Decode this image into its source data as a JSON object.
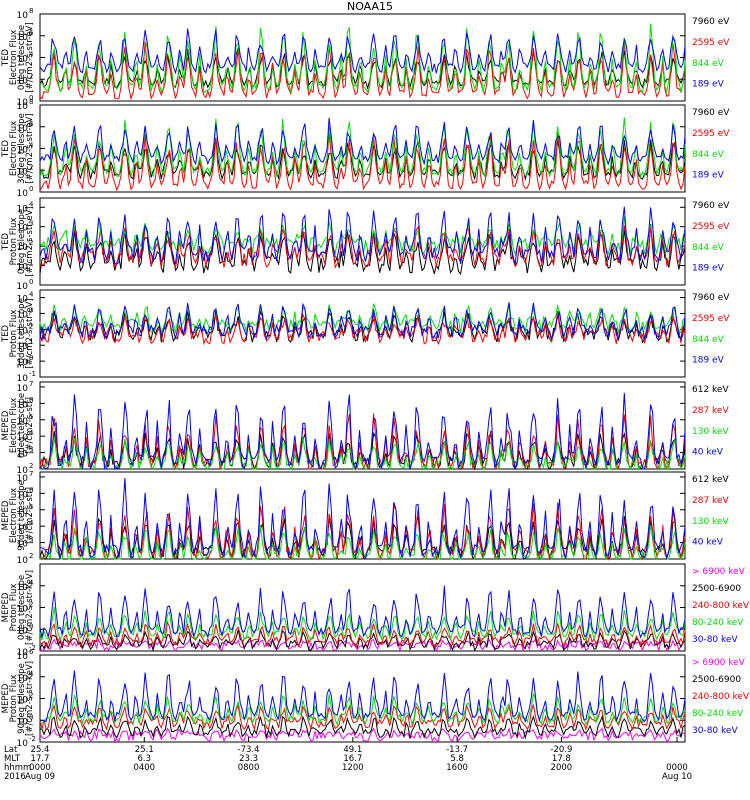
{
  "chart_data": {
    "type": "line",
    "title": "NOAA15",
    "y_scale": "log",
    "x_axis": {
      "row_labels": [
        "Lat",
        "MLT",
        "hhmm",
        "2016"
      ],
      "ticks": [
        {
          "lat": "25.4",
          "mlt": "17.7",
          "hhmm": "0000",
          "date": "Aug 09"
        },
        {
          "lat": "25.1",
          "mlt": "6.3",
          "hhmm": "0400",
          "date": ""
        },
        {
          "lat": "-73.4",
          "mlt": "23.3",
          "hhmm": "0800",
          "date": ""
        },
        {
          "lat": "49.1",
          "mlt": "16.7",
          "hhmm": "1200",
          "date": ""
        },
        {
          "lat": "-13.7",
          "mlt": "5.8",
          "hhmm": "1600",
          "date": ""
        },
        {
          "lat": "-20.9",
          "mlt": "17.8",
          "hhmm": "2000",
          "date": ""
        },
        {
          "lat": "",
          "mlt": "",
          "hhmm": "0000",
          "date": "Aug 10"
        }
      ]
    },
    "colors": {
      "black": "#000000",
      "red": "#ff0000",
      "green": "#00dd00",
      "blue": "#0000ff",
      "magenta": "#ff00ff"
    },
    "panels": [
      {
        "ylabel": [
          "TED",
          "Electron Flux",
          "0deg telescope",
          "[#/cm2-s-str-eV]"
        ],
        "yticks": [
          {
            "base": "10",
            "exp": "0"
          },
          {
            "base": "10",
            "exp": "2"
          },
          {
            "base": "10",
            "exp": "4"
          },
          {
            "base": "10",
            "exp": "6"
          },
          {
            "base": "10",
            "exp": "8"
          }
        ],
        "ylim": [
          1,
          100000000
        ],
        "series": [
          {
            "name": "7960 eV",
            "color": "#000000",
            "baseline": 1.6,
            "peak": 5.0
          },
          {
            "name": "2595 eV",
            "color": "#ff0000",
            "baseline": 0.6,
            "peak": 5.8
          },
          {
            "name": "844 eV",
            "color": "#00dd00",
            "baseline": 1.2,
            "peak": 7.2
          },
          {
            "name": "189 eV",
            "color": "#0000ff",
            "baseline": 3.0,
            "peak": 6.8
          }
        ]
      },
      {
        "ylabel": [
          "TED",
          "Electron Flux",
          "30deg telescope",
          "[#/cm2-s-str-eV]"
        ],
        "yticks": [
          {
            "base": "10",
            "exp": "0"
          },
          {
            "base": "10",
            "exp": "2"
          },
          {
            "base": "10",
            "exp": "4"
          },
          {
            "base": "10",
            "exp": "6"
          },
          {
            "base": "10",
            "exp": "8"
          }
        ],
        "ylim": [
          1,
          100000000
        ],
        "series": [
          {
            "name": "7960 eV",
            "color": "#000000",
            "baseline": 1.6,
            "peak": 5.0
          },
          {
            "name": "2595 eV",
            "color": "#ff0000",
            "baseline": 0.6,
            "peak": 5.6
          },
          {
            "name": "844 eV",
            "color": "#00dd00",
            "baseline": 1.8,
            "peak": 7.0
          },
          {
            "name": "189 eV",
            "color": "#0000ff",
            "baseline": 3.0,
            "peak": 6.8
          }
        ]
      },
      {
        "ylabel": [
          "TED",
          "Proton Flux",
          "0deg telescope",
          "[#/cm2-s-str-eV]"
        ],
        "yticks": [
          {
            "base": "10",
            "exp": "0"
          },
          {
            "base": "10",
            "exp": "1"
          },
          {
            "base": "10",
            "exp": "2"
          },
          {
            "base": "10",
            "exp": "3"
          },
          {
            "base": "10",
            "exp": "4"
          }
        ],
        "ylim": [
          1,
          30000
        ],
        "series": [
          {
            "name": "7960 eV",
            "color": "#000000",
            "baseline": 1.0,
            "peak": 3.0
          },
          {
            "name": "2595 eV",
            "color": "#ff0000",
            "baseline": 1.3,
            "peak": 3.2
          },
          {
            "name": "844 eV",
            "color": "#00dd00",
            "baseline": 2.0,
            "peak": 3.4
          },
          {
            "name": "189 eV",
            "color": "#0000ff",
            "baseline": 1.5,
            "peak": 4.2
          }
        ]
      },
      {
        "ylabel": [
          "TED",
          "Proton Flux",
          "30deg telescope",
          "[#/cm2-s-str-eV]"
        ],
        "yticks": [
          {
            "base": "10",
            "exp": "-1"
          },
          {
            "base": "10",
            "exp": "0"
          },
          {
            "base": "10",
            "exp": "1"
          },
          {
            "base": "10",
            "exp": "2"
          },
          {
            "base": "10",
            "exp": "3"
          },
          {
            "base": "10",
            "exp": "4"
          }
        ],
        "ylim": [
          0.1,
          30000
        ],
        "series": [
          {
            "name": "7960 eV",
            "color": "#000000",
            "baseline": 1.6,
            "peak": 3.2
          },
          {
            "name": "2595 eV",
            "color": "#ff0000",
            "baseline": 1.5,
            "peak": 3.0
          },
          {
            "name": "844 eV",
            "color": "#00dd00",
            "baseline": 2.2,
            "peak": 3.6
          },
          {
            "name": "189 eV",
            "color": "#0000ff",
            "baseline": 1.8,
            "peak": 3.8
          }
        ]
      },
      {
        "ylabel": [
          "MEPED",
          "Electron Flux",
          "0deg telescope",
          "[#/cm2-s-str]"
        ],
        "yticks": [
          {
            "base": "10",
            "exp": "2"
          },
          {
            "base": "10",
            "exp": "3"
          },
          {
            "base": "10",
            "exp": "4"
          },
          {
            "base": "10",
            "exp": "5"
          },
          {
            "base": "10",
            "exp": "6"
          },
          {
            "base": "10",
            "exp": "7"
          }
        ],
        "ylim": [
          100,
          20000000
        ],
        "series": [
          {
            "name": "612 keV",
            "color": "#000000",
            "baseline": 2.3,
            "peak": 4.5
          },
          {
            "name": "287 keV",
            "color": "#ff0000",
            "baseline": 2.2,
            "peak": 5.5
          },
          {
            "name": "130 keV",
            "color": "#00dd00",
            "baseline": 2.1,
            "peak": 4.0
          },
          {
            "name": "40 keV",
            "color": "#0000ff",
            "baseline": 2.3,
            "peak": 6.8
          }
        ]
      },
      {
        "ylabel": [
          "MEPED",
          "Electron Flux",
          "90deg telescope",
          "[#/cm2-s-str]"
        ],
        "yticks": [
          {
            "base": "10",
            "exp": "2"
          },
          {
            "base": "10",
            "exp": "3"
          },
          {
            "base": "10",
            "exp": "4"
          },
          {
            "base": "10",
            "exp": "5"
          },
          {
            "base": "10",
            "exp": "6"
          },
          {
            "base": "10",
            "exp": "7"
          }
        ],
        "ylim": [
          100,
          20000000
        ],
        "series": [
          {
            "name": "612 keV",
            "color": "#000000",
            "baseline": 2.3,
            "peak": 4.8
          },
          {
            "name": "287 keV",
            "color": "#ff0000",
            "baseline": 2.2,
            "peak": 5.6
          },
          {
            "name": "130 keV",
            "color": "#00dd00",
            "baseline": 2.0,
            "peak": 4.2
          },
          {
            "name": "40 keV",
            "color": "#0000ff",
            "baseline": 2.4,
            "peak": 6.8
          }
        ]
      },
      {
        "ylabel": [
          "MEPED",
          "Proton Flux",
          "0deg telescope",
          "[#/cm2-s-str-keV]"
        ],
        "yticks": [
          {
            "base": "10",
            "exp": "-2"
          },
          {
            "base": "10",
            "exp": "0"
          },
          {
            "base": "10",
            "exp": "2"
          },
          {
            "base": "10",
            "exp": "4"
          }
        ],
        "ylim": [
          0.01,
          1000000
        ],
        "series": [
          {
            "name": "> 6900 keV",
            "color": "#ff00ff",
            "baseline": -1.6,
            "peak": -1.0
          },
          {
            "name": "2500-6900",
            "color": "#000000",
            "baseline": -1.5,
            "peak": 0.0
          },
          {
            "name": "240-800 keV",
            "color": "#ff0000",
            "baseline": -1.2,
            "peak": 0.8
          },
          {
            "name": "80-240 keV",
            "color": "#00dd00",
            "baseline": -0.6,
            "peak": 2.0
          },
          {
            "name": "30-80 keV",
            "color": "#0000ff",
            "baseline": -0.3,
            "peak": 4.0
          }
        ]
      },
      {
        "ylabel": [
          "MEPED",
          "Proton Flux",
          "90deg telescope",
          "[#/cm2-s-str-keV]"
        ],
        "yticks": [
          {
            "base": "10",
            "exp": "-2"
          },
          {
            "base": "10",
            "exp": "0"
          },
          {
            "base": "10",
            "exp": "2"
          },
          {
            "base": "10",
            "exp": "4"
          },
          {
            "base": "10",
            "exp": "6"
          }
        ],
        "ylim": [
          0.01,
          1000000
        ],
        "series": [
          {
            "name": "> 6900 keV",
            "color": "#ff00ff",
            "baseline": -1.5,
            "peak": -0.8
          },
          {
            "name": "2500-6900",
            "color": "#000000",
            "baseline": -1.2,
            "peak": 0.5
          },
          {
            "name": "240-800 keV",
            "color": "#ff0000",
            "baseline": -0.4,
            "peak": 1.6
          },
          {
            "name": "80-240 keV",
            "color": "#00dd00",
            "baseline": 0.0,
            "peak": 2.6
          },
          {
            "name": "30-80 keV",
            "color": "#0000ff",
            "baseline": 0.3,
            "peak": 4.8
          }
        ]
      }
    ]
  }
}
